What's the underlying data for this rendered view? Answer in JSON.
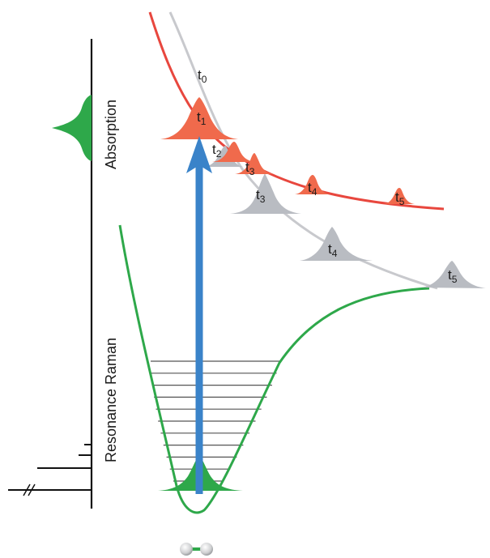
{
  "labels": {
    "absorption": "Absorption",
    "resonance_raman": "Resonance Raman"
  },
  "time_labels": {
    "t0": {
      "base": "t",
      "sub": "0"
    },
    "t1": {
      "base": "t",
      "sub": "1"
    },
    "t2": {
      "base": "t",
      "sub": "2"
    },
    "t3_red": {
      "base": "t",
      "sub": "3"
    },
    "t3_gray": {
      "base": "t",
      "sub": "3"
    },
    "t4_red": {
      "base": "t",
      "sub": "4"
    },
    "t4_gray": {
      "base": "t",
      "sub": "4"
    },
    "t5_red": {
      "base": "t",
      "sub": "5"
    },
    "t5_gray": {
      "base": "t",
      "sub": "5"
    }
  },
  "colors": {
    "green": "#2ea84a",
    "red": "#e8473e",
    "red_fill": "#f06a4c",
    "gray": "#c8c9cd",
    "gray_fill": "#b9bcc2",
    "blue": "#3a83c9",
    "axis": "#111111"
  },
  "vibrational_levels": 11
}
